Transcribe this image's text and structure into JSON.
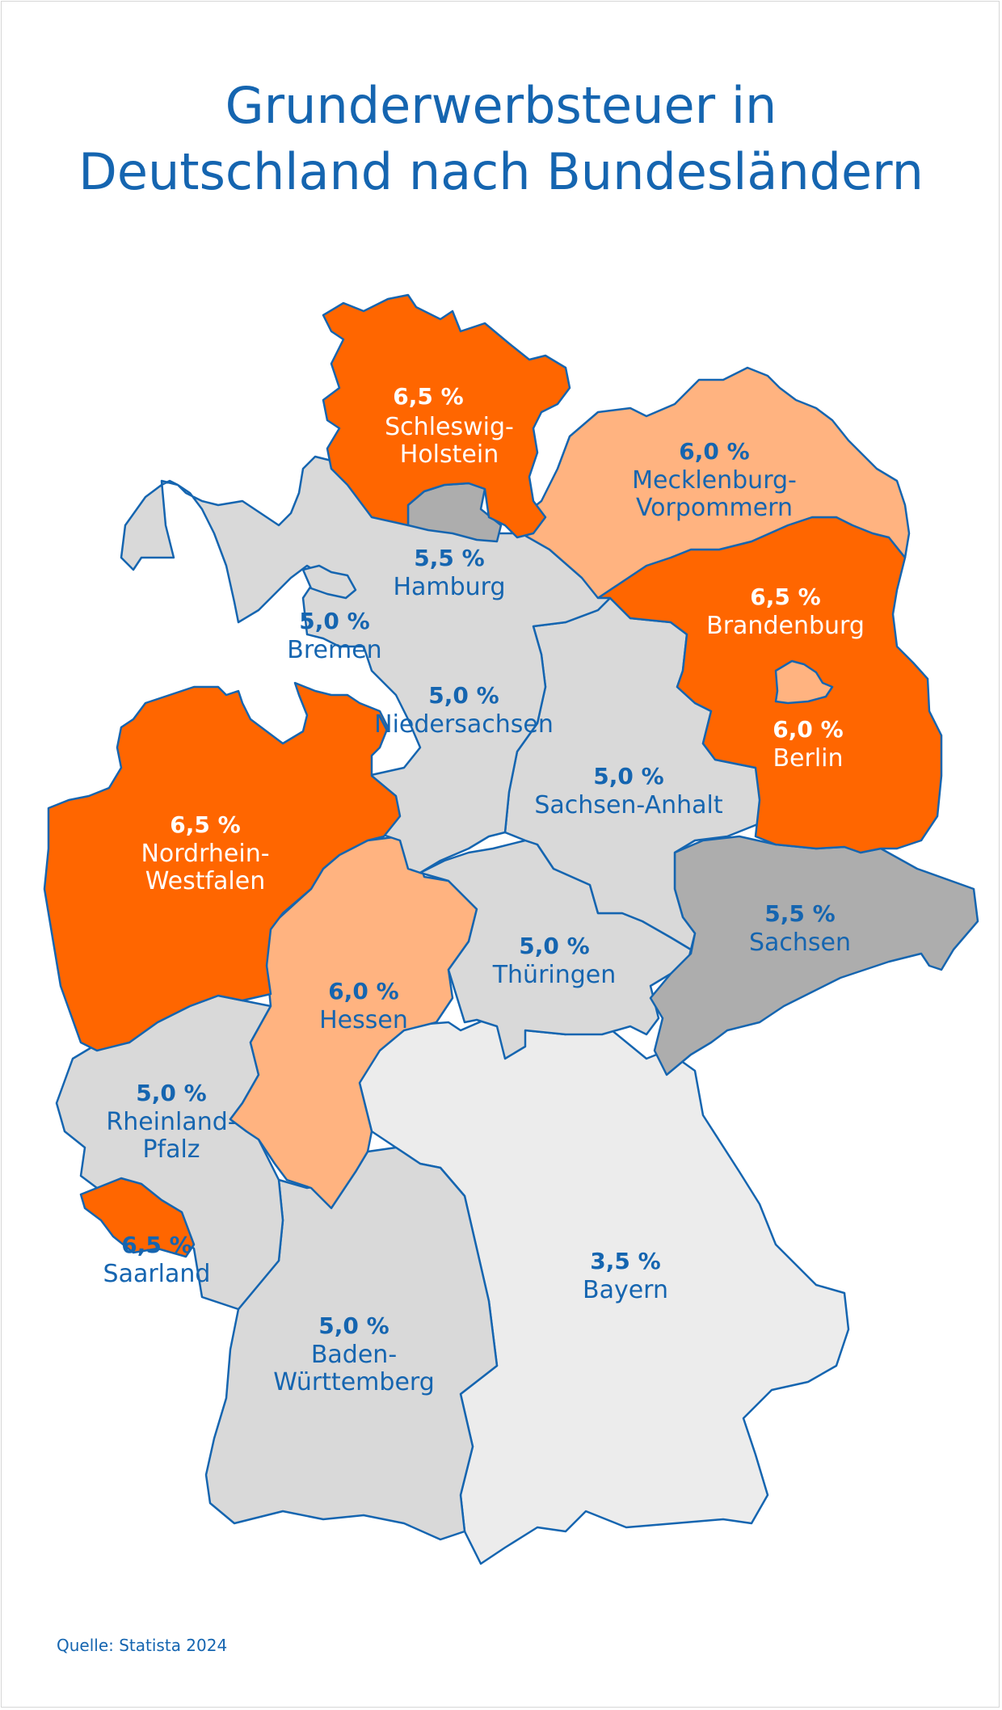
{
  "title_line1": "Grunderwerbsteuer in",
  "title_line2": "Deutschland nach Bundesländern",
  "source": "Quelle: Statista 2024",
  "colors": {
    "rate_6_5": "#ff6600",
    "rate_6_0": "#ffb380",
    "rate_5_5": "#adadad",
    "rate_5_0": "#d9d9d9",
    "rate_3_5": "#ececec",
    "border": "#1565b0",
    "text_blue": "#1565b0"
  },
  "states": [
    {
      "id": "schleswig-holstein",
      "pct": "6,5 %",
      "name1": "Schleswig-",
      "name2": "Holstein"
    },
    {
      "id": "hamburg",
      "pct": "5,5 %",
      "name1": "Hamburg"
    },
    {
      "id": "mecklenburg-vorpommern",
      "pct": "6,0 %",
      "name1": "Mecklenburg-",
      "name2": "Vorpommern"
    },
    {
      "id": "bremen",
      "pct": "5,0 %",
      "name1": "Bremen"
    },
    {
      "id": "brandenburg",
      "pct": "6,5 %",
      "name1": "Brandenburg"
    },
    {
      "id": "niedersachsen",
      "pct": "5,0 %",
      "name1": "Niedersachsen"
    },
    {
      "id": "berlin",
      "pct": "6,0 %",
      "name1": "Berlin"
    },
    {
      "id": "sachsen-anhalt",
      "pct": "5,0 %",
      "name1": "Sachsen-Anhalt"
    },
    {
      "id": "nordrhein-westfalen",
      "pct": "6,5 %",
      "name1": "Nordrhein-",
      "name2": "Westfalen"
    },
    {
      "id": "sachsen",
      "pct": "5,5 %",
      "name1": "Sachsen"
    },
    {
      "id": "thueringen",
      "pct": "5,0 %",
      "name1": "Thüringen"
    },
    {
      "id": "hessen",
      "pct": "6,0 %",
      "name1": "Hessen"
    },
    {
      "id": "rheinland-pfalz",
      "pct": "5,0 %",
      "name1": "Rheinland-",
      "name2": "Pfalz"
    },
    {
      "id": "saarland",
      "pct": "6,5 %",
      "name1": "Saarland"
    },
    {
      "id": "bayern",
      "pct": "3,5 %",
      "name1": "Bayern"
    },
    {
      "id": "baden-wuerttemberg",
      "pct": "5,0 %",
      "name1": "Baden-",
      "name2": "Württemberg"
    }
  ]
}
